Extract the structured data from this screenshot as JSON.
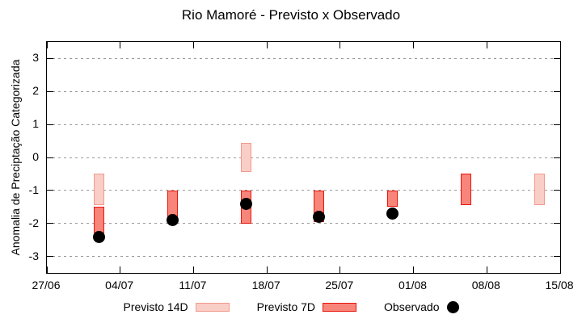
{
  "title": "Rio Mamoré - Previsto x Observado",
  "y_axis": {
    "label": "Anomalia de Preciptação Categorizada",
    "ticks": [
      "3",
      "2",
      "1",
      "0",
      "-1",
      "-2",
      "-3"
    ]
  },
  "x_axis": {
    "ticks": [
      "27/06",
      "04/07",
      "11/07",
      "18/07",
      "25/07",
      "01/08",
      "08/08",
      "15/08"
    ]
  },
  "legend": {
    "items": [
      {
        "label": "Previsto 14D",
        "kind": "box14"
      },
      {
        "label": "Previsto 7D",
        "kind": "box7"
      },
      {
        "label": "Observado",
        "kind": "dot"
      }
    ]
  },
  "colors": {
    "previsto_14d_fill": "#f9cec6",
    "previsto_14d_border": "#f29a8c",
    "previsto_7d_fill": "#f8857a",
    "previsto_7d_border": "#e8150b",
    "observado": "#000000",
    "grid": "#999999",
    "axis": "#000000"
  },
  "chart_data": {
    "type": "bar",
    "subtype": "forecast-range-boxes-with-observed-scatter",
    "title": "Rio Mamoré - Previsto x Observado",
    "xlabel": "",
    "ylabel": "Anomalia de Preciptação Categorizada",
    "ylim": [
      -3.5,
      3.5
    ],
    "yticks": [
      3,
      2,
      1,
      0,
      -1,
      -2,
      -3
    ],
    "grid": "horizontal-dashed",
    "legend_position": "below-plot",
    "x_axis_span_days": 49,
    "x_tick_labels": [
      "27/06",
      "04/07",
      "11/07",
      "18/07",
      "25/07",
      "01/08",
      "08/08",
      "15/08"
    ],
    "x_tick_days": [
      0,
      7,
      14,
      21,
      28,
      35,
      42,
      49
    ],
    "series": [
      {
        "name": "Previsto 14D",
        "type": "range_box",
        "points": [
          {
            "day": 5,
            "low": -1.45,
            "high": -0.5
          },
          {
            "day": 19,
            "low": -0.45,
            "high": 0.45
          },
          {
            "day": 47,
            "low": -1.45,
            "high": -0.5
          }
        ]
      },
      {
        "name": "Previsto 7D",
        "type": "range_box",
        "points": [
          {
            "day": 5,
            "low": -2.3,
            "high": -1.5
          },
          {
            "day": 12,
            "low": -1.85,
            "high": -1.0
          },
          {
            "day": 19,
            "low": -2.0,
            "high": -1.0
          },
          {
            "day": 26,
            "low": -1.95,
            "high": -1.0
          },
          {
            "day": 33,
            "low": -1.5,
            "high": -1.0
          },
          {
            "day": 40,
            "low": -1.45,
            "high": -0.5
          }
        ]
      },
      {
        "name": "Observado",
        "type": "scatter",
        "points": [
          {
            "day": 5,
            "value": -2.4
          },
          {
            "day": 12,
            "value": -1.9
          },
          {
            "day": 19,
            "value": -1.4
          },
          {
            "day": 26,
            "value": -1.8
          },
          {
            "day": 33,
            "value": -1.7
          }
        ]
      }
    ]
  }
}
